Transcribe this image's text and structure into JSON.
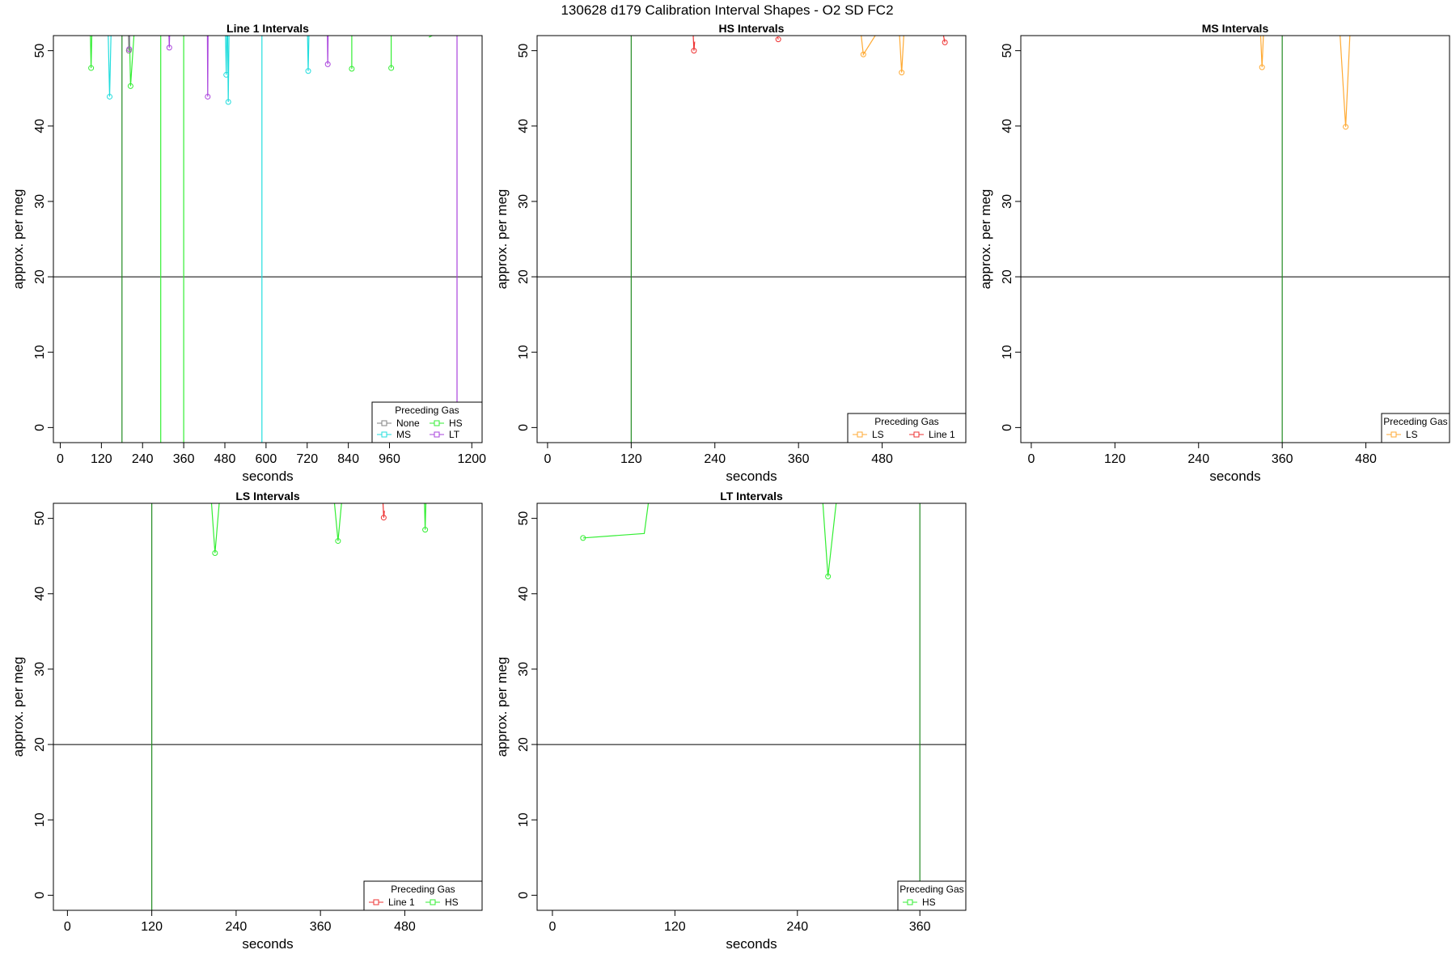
{
  "suptitle": "130628   d179   Calibration Interval Shapes - O2 SD FC2",
  "colors": {
    "None": "#808080",
    "HS": "#33ee33",
    "MS": "#22dddd",
    "LT": "#aa44dd",
    "LS": "#ffaa33",
    "Line 1": "#ee3333",
    "marker_line": "#228b22",
    "reference_line": "#000000"
  },
  "chart_data": [
    {
      "type": "line",
      "title": "Line 1 Intervals",
      "xlabel": "seconds",
      "ylabel": "approx. per meg",
      "xlim": [
        -20,
        1230
      ],
      "ylim": [
        -2,
        52
      ],
      "xticks": [
        "0",
        "120",
        "240",
        "360",
        "480",
        "600",
        "720",
        "840",
        "960",
        "1200"
      ],
      "xtick_values": [
        0,
        120,
        240,
        360,
        480,
        600,
        720,
        840,
        960,
        1200
      ],
      "yticks": [
        "0",
        "10",
        "20",
        "30",
        "40",
        "50"
      ],
      "ytick_values": [
        0,
        10,
        20,
        30,
        40,
        50
      ],
      "hline": 20,
      "vlines": [
        {
          "x": 180,
          "color": "marker_line"
        }
      ],
      "legend": {
        "title": "Preceding Gas",
        "placement": "bottom-right",
        "entries": [
          "None",
          "HS",
          "MS",
          "LT"
        ],
        "ncol": 2
      },
      "series": [
        {
          "name": "HS",
          "segments": [
            [
              [
                88,
                52
              ],
              [
                90,
                47.7
              ],
              [
                92,
                52
              ]
            ],
            [
              [
                202,
                52
              ],
              [
                205,
                45.3
              ],
              [
                215,
                52
              ]
            ],
            [
              [
                293,
                52
              ],
              [
                293,
                -2
              ]
            ],
            [
              [
                360,
                52
              ],
              [
                360,
                -2
              ]
            ],
            [
              [
                850,
                52
              ],
              [
                850,
                47.6
              ],
              [
                850,
                52
              ]
            ],
            [
              [
                965,
                52
              ],
              [
                965,
                47.7
              ],
              [
                965,
                52
              ]
            ],
            [
              [
                1075,
                51.8
              ],
              [
                1085,
                52
              ]
            ]
          ]
        },
        {
          "name": "MS",
          "segments": [
            [
              [
                140,
                52
              ],
              [
                144,
                43.9
              ],
              [
                148,
                52
              ]
            ],
            [
              [
                488,
                52
              ],
              [
                490,
                43.2
              ],
              [
                492,
                52
              ]
            ],
            [
              [
                482,
                52
              ],
              [
                484,
                46.8
              ],
              [
                486,
                52
              ]
            ],
            [
              [
                588,
                52
              ],
              [
                588,
                -2
              ]
            ],
            [
              [
                721,
                52
              ],
              [
                723,
                47.3
              ],
              [
                725,
                52
              ]
            ]
          ]
        },
        {
          "name": "LT",
          "segments": [
            [
              [
                200,
                52
              ],
              [
                201,
                50.2
              ],
              [
                202,
                52
              ]
            ],
            [
              [
                317,
                52
              ],
              [
                318,
                50.4
              ],
              [
                319,
                52
              ]
            ],
            [
              [
                429,
                52
              ],
              [
                430,
                43.9
              ],
              [
                431,
                52
              ]
            ],
            [
              [
                779,
                52
              ],
              [
                780,
                48.2
              ],
              [
                781,
                52
              ]
            ],
            [
              [
                1157,
                52
              ],
              [
                1157,
                -2
              ]
            ]
          ]
        },
        {
          "name": "None",
          "segments": [
            [
              [
                199,
                52
              ],
              [
                200,
                50
              ],
              [
                201,
                52
              ]
            ]
          ]
        }
      ]
    },
    {
      "type": "line",
      "title": "HS Intervals",
      "xlabel": "seconds",
      "ylabel": "approx. per meg",
      "xlim": [
        -15,
        600
      ],
      "ylim": [
        -2,
        52
      ],
      "xticks": [
        "0",
        "120",
        "240",
        "360",
        "480"
      ],
      "xtick_values": [
        0,
        120,
        240,
        360,
        480
      ],
      "yticks": [
        "0",
        "10",
        "20",
        "30",
        "40",
        "50"
      ],
      "ytick_values": [
        0,
        10,
        20,
        30,
        40,
        50
      ],
      "hline": 20,
      "vlines": [
        {
          "x": 120,
          "color": "marker_line"
        }
      ],
      "legend": {
        "title": "Preceding Gas",
        "placement": "bottom-right",
        "entries": [
          "LS",
          "Line 1"
        ],
        "ncol": 2
      },
      "series": [
        {
          "name": "LS",
          "segments": [
            [
              [
                450,
                52
              ],
              [
                453,
                49.5
              ],
              [
                470,
                52
              ]
            ],
            [
              [
                505,
                52
              ],
              [
                508,
                47.1
              ],
              [
                511,
                52
              ]
            ]
          ]
        },
        {
          "name": "Line 1",
          "segments": [
            [
              [
                209,
                52
              ],
              [
                210,
                50
              ],
              [
                211,
                51.2
              ]
            ],
            [
              [
                330,
                51.8
              ],
              [
                331,
                51.5
              ]
            ],
            [
              [
                568,
                52
              ],
              [
                570,
                51.1
              ]
            ]
          ]
        }
      ]
    },
    {
      "type": "line",
      "title": "MS Intervals",
      "xlabel": "seconds",
      "ylabel": "approx. per meg",
      "xlim": [
        -15,
        600
      ],
      "ylim": [
        -2,
        52
      ],
      "xticks": [
        "0",
        "120",
        "240",
        "360",
        "480"
      ],
      "xtick_values": [
        0,
        120,
        240,
        360,
        480
      ],
      "yticks": [
        "0",
        "10",
        "20",
        "30",
        "40",
        "50"
      ],
      "ytick_values": [
        0,
        10,
        20,
        30,
        40,
        50
      ],
      "hline": 20,
      "vlines": [
        {
          "x": 360,
          "color": "marker_line"
        }
      ],
      "legend": {
        "title": "Preceding Gas",
        "placement": "bottom-right",
        "entries": [
          "LS"
        ],
        "ncol": 1
      },
      "series": [
        {
          "name": "LS",
          "segments": [
            [
              [
                329,
                52
              ],
              [
                331,
                47.8
              ],
              [
                333,
                52
              ]
            ],
            [
              [
                443,
                52
              ],
              [
                451,
                39.9
              ],
              [
                457,
                52
              ]
            ]
          ]
        }
      ]
    },
    {
      "type": "line",
      "title": "LS Intervals",
      "xlabel": "seconds",
      "ylabel": "approx. per meg",
      "xlim": [
        -20,
        590
      ],
      "ylim": [
        -2,
        52
      ],
      "xticks": [
        "0",
        "120",
        "240",
        "360",
        "480"
      ],
      "xtick_values": [
        0,
        120,
        240,
        360,
        480
      ],
      "yticks": [
        "0",
        "10",
        "20",
        "30",
        "40",
        "50"
      ],
      "ytick_values": [
        0,
        10,
        20,
        30,
        40,
        50
      ],
      "hline": 20,
      "vlines": [
        {
          "x": 120,
          "color": "marker_line"
        }
      ],
      "legend": {
        "title": "Preceding Gas",
        "placement": "bottom-right",
        "entries": [
          "Line 1",
          "HS"
        ],
        "ncol": 2
      },
      "series": [
        {
          "name": "HS",
          "segments": [
            [
              [
                205,
                52
              ],
              [
                210,
                45.4
              ],
              [
                216,
                52
              ]
            ],
            [
              [
                380,
                52
              ],
              [
                385,
                47
              ],
              [
                390,
                52
              ]
            ],
            [
              [
                508,
                52
              ],
              [
                509,
                48.5
              ],
              [
                510,
                52
              ]
            ]
          ]
        },
        {
          "name": "Line 1",
          "segments": [
            [
              [
                449,
                52
              ],
              [
                450,
                50.1
              ],
              [
                451,
                51
              ]
            ]
          ]
        }
      ]
    },
    {
      "type": "line",
      "title": "LT Intervals",
      "xlabel": "seconds",
      "ylabel": "approx. per meg",
      "xlim": [
        -15,
        405
      ],
      "ylim": [
        -2,
        52
      ],
      "xticks": [
        "0",
        "120",
        "240",
        "360"
      ],
      "xtick_values": [
        0,
        120,
        240,
        360
      ],
      "yticks": [
        "0",
        "10",
        "20",
        "30",
        "40",
        "50"
      ],
      "ytick_values": [
        0,
        10,
        20,
        30,
        40,
        50
      ],
      "hline": 20,
      "vlines": [
        {
          "x": 360,
          "color": "marker_line"
        }
      ],
      "legend": {
        "title": "Preceding Gas",
        "placement": "bottom-right",
        "entries": [
          "HS"
        ],
        "ncol": 1
      },
      "series": [
        {
          "name": "HS",
          "segments": [
            [
              [
                30,
                47.4
              ],
              [
                90,
                48
              ],
              [
                94,
                52
              ]
            ],
            [
              [
                265,
                52
              ],
              [
                270,
                42.3
              ],
              [
                278,
                52
              ]
            ]
          ]
        }
      ]
    }
  ]
}
